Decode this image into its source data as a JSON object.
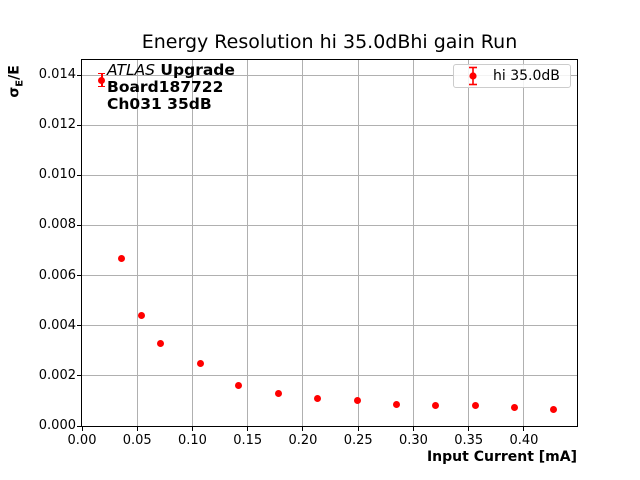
{
  "colors": {
    "series": "#ff0000",
    "grid": "#b0b0b0",
    "text": "#000000",
    "legend_border": "#cccccc",
    "spine": "#000000"
  },
  "chart_data": {
    "type": "scatter",
    "title": "Energy Resolution hi 35.0dBhi gain Run",
    "xlabel": "Input Current [mA]",
    "ylabel": "σE/E",
    "ylabel_parts": {
      "sigma": "σ",
      "sub": "E",
      "rest": "/E"
    },
    "grid": true,
    "xlim": [
      0,
      0.448
    ],
    "ylim": [
      0,
      0.0146
    ],
    "xticks": {
      "values": [
        0,
        0.05,
        0.1,
        0.15,
        0.2,
        0.25,
        0.3,
        0.35,
        0.4
      ],
      "labels": [
        "0.00",
        "0.05",
        "0.10",
        "0.15",
        "0.20",
        "0.25",
        "0.30",
        "0.35",
        "0.40"
      ]
    },
    "yticks": {
      "values": [
        0,
        0.002,
        0.004,
        0.006,
        0.008,
        0.01,
        0.012,
        0.014
      ],
      "labels": [
        "0.000",
        "0.002",
        "0.004",
        "0.006",
        "0.008",
        "0.010",
        "0.012",
        "0.014"
      ]
    },
    "legend": {
      "label": "hi 35.0dB",
      "position": "upper right"
    },
    "annotation": {
      "experiment": "ATLAS",
      "line1_rest": " Upgrade",
      "line2": "Board187722",
      "line3": "Ch031 35dB"
    },
    "series": [
      {
        "name": "hi 35.0dB",
        "color": "#ff0000",
        "marker": "circle",
        "x": [
          0.018,
          0.036,
          0.054,
          0.071,
          0.107,
          0.142,
          0.178,
          0.213,
          0.249,
          0.285,
          0.32,
          0.356,
          0.391,
          0.427
        ],
        "y": [
          0.0138,
          0.0067,
          0.0044,
          0.0033,
          0.0025,
          0.0016,
          0.0013,
          0.0011,
          0.001,
          0.00087,
          0.00083,
          0.00082,
          0.00074,
          0.00066
        ],
        "yerr": [
          0.00026,
          0,
          0,
          0,
          0,
          0,
          0,
          0,
          0,
          0,
          0,
          0,
          0,
          0
        ]
      }
    ]
  }
}
